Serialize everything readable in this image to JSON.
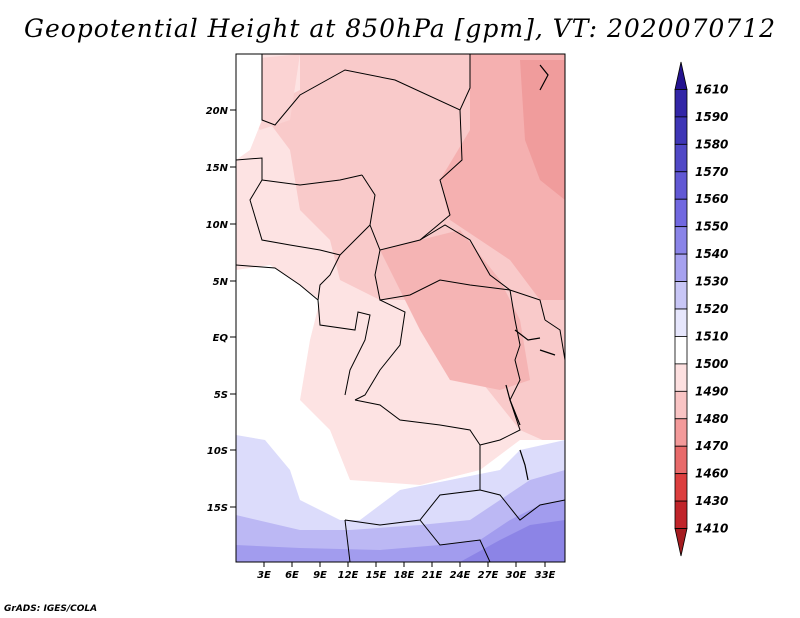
{
  "title": "Geopotential Height at 850hPa [gpm], VT: 2020070712",
  "credit": "GrADS: IGES/COLA",
  "map": {
    "lat_labels": [
      "20N",
      "15N",
      "10N",
      "5N",
      "EQ",
      "5S",
      "10S",
      "15S"
    ],
    "lon_labels": [
      "3E",
      "6E",
      "9E",
      "12E",
      "15E",
      "18E",
      "21E",
      "24E",
      "27E",
      "30E",
      "33E"
    ]
  },
  "colorbar": {
    "levels": [
      "1610",
      "1590",
      "1580",
      "1570",
      "1560",
      "1550",
      "1540",
      "1530",
      "1520",
      "1510",
      "1500",
      "1490",
      "1480",
      "1470",
      "1460",
      "1430",
      "1410"
    ],
    "colors": [
      "#24138f",
      "#3226a7",
      "#3e36b6",
      "#5048c6",
      "#6158d4",
      "#7168e0",
      "#8a84e8",
      "#a6a1ef",
      "#c8c6f6",
      "#e6e6fc",
      "#ffffff",
      "#fde0e0",
      "#f9c4c4",
      "#f39a9a",
      "#e86a6a",
      "#dc3e3e",
      "#c0242a",
      "#a51c20"
    ]
  }
}
